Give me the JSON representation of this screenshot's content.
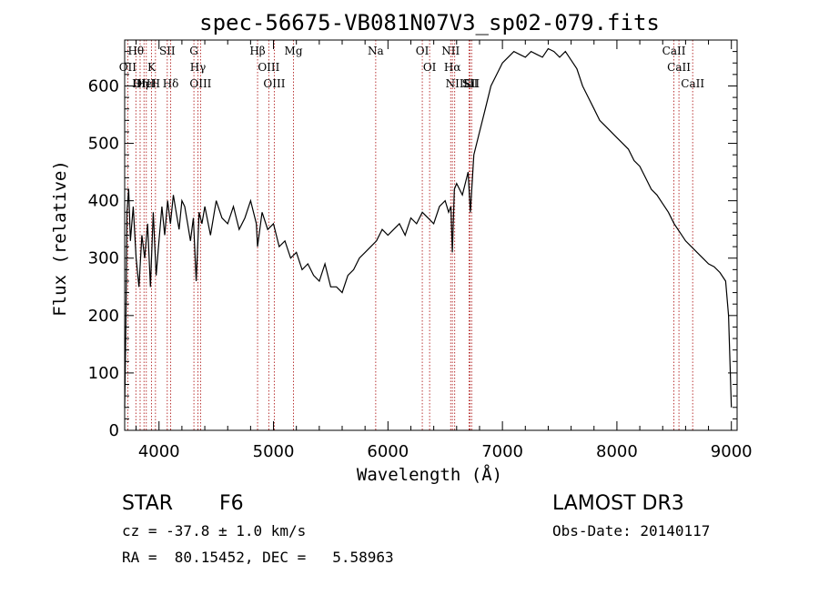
{
  "chart_data": {
    "type": "line",
    "title": "spec-56675-VB081N07V3_sp02-079.fits",
    "xlabel": "Wavelength (Å)",
    "ylabel": "Flux (relative)",
    "xlim": [
      3700,
      9050
    ],
    "ylim": [
      0,
      680
    ],
    "xticks": [
      4000,
      5000,
      6000,
      7000,
      8000,
      9000
    ],
    "yticks": [
      0,
      100,
      200,
      300,
      400,
      500,
      600
    ],
    "series": [
      {
        "name": "flux",
        "x": [
          3700,
          3710,
          3720,
          3735,
          3750,
          3775,
          3800,
          3825,
          3850,
          3875,
          3900,
          3925,
          3950,
          3975,
          4000,
          4025,
          4050,
          4075,
          4100,
          4125,
          4150,
          4175,
          4200,
          4225,
          4250,
          4275,
          4300,
          4325,
          4350,
          4375,
          4400,
          4450,
          4500,
          4550,
          4600,
          4650,
          4700,
          4750,
          4800,
          4850,
          4861,
          4900,
          4950,
          5000,
          5050,
          5100,
          5150,
          5200,
          5250,
          5300,
          5350,
          5400,
          5450,
          5500,
          5550,
          5600,
          5650,
          5700,
          5750,
          5800,
          5850,
          5900,
          5950,
          6000,
          6050,
          6100,
          6150,
          6200,
          6250,
          6300,
          6350,
          6400,
          6450,
          6500,
          6530,
          6550,
          6563,
          6580,
          6600,
          6650,
          6700,
          6720,
          6750,
          6800,
          6850,
          6900,
          6950,
          7000,
          7050,
          7100,
          7150,
          7200,
          7250,
          7300,
          7350,
          7400,
          7450,
          7500,
          7550,
          7600,
          7650,
          7700,
          7750,
          7800,
          7850,
          7900,
          7950,
          8000,
          8050,
          8100,
          8150,
          8200,
          8250,
          8300,
          8350,
          8400,
          8450,
          8500,
          8550,
          8600,
          8650,
          8700,
          8750,
          8800,
          8850,
          8900,
          8950,
          8975,
          9000
        ],
        "y": [
          40,
          180,
          380,
          420,
          330,
          390,
          300,
          250,
          340,
          300,
          360,
          250,
          380,
          270,
          330,
          390,
          340,
          400,
          360,
          410,
          380,
          350,
          400,
          390,
          360,
          330,
          370,
          260,
          380,
          360,
          390,
          340,
          400,
          370,
          360,
          390,
          350,
          370,
          400,
          360,
          320,
          380,
          350,
          360,
          320,
          330,
          300,
          310,
          280,
          290,
          270,
          260,
          290,
          250,
          250,
          240,
          270,
          280,
          300,
          310,
          320,
          330,
          350,
          340,
          350,
          360,
          340,
          370,
          360,
          380,
          370,
          360,
          390,
          400,
          380,
          390,
          310,
          420,
          430,
          410,
          450,
          380,
          480,
          520,
          560,
          600,
          620,
          640,
          650,
          660,
          655,
          650,
          660,
          655,
          650,
          665,
          660,
          650,
          660,
          645,
          630,
          600,
          580,
          560,
          540,
          530,
          520,
          510,
          500,
          490,
          470,
          460,
          440,
          420,
          410,
          395,
          380,
          360,
          345,
          330,
          320,
          310,
          300,
          290,
          285,
          275,
          260,
          200,
          40
        ]
      }
    ],
    "lines": [
      {
        "name": "Hθ",
        "wave": 3798
      },
      {
        "name": "OII",
        "wave": 3727
      },
      {
        "name": "OIII",
        "wave": 3869
      },
      {
        "name": "Hη",
        "wave": 3835
      },
      {
        "name": "HeI",
        "wave": 3889
      },
      {
        "name": "K",
        "wave": 3934
      },
      {
        "name": "H",
        "wave": 3969
      },
      {
        "name": "SII",
        "wave": 4072
      },
      {
        "name": "Hδ",
        "wave": 4102
      },
      {
        "name": "G",
        "wave": 4305
      },
      {
        "name": "Hγ",
        "wave": 4340
      },
      {
        "name": "OIII",
        "wave": 4363
      },
      {
        "name": "Hβ",
        "wave": 4861
      },
      {
        "name": "OIII",
        "wave": 4959
      },
      {
        "name": "OIII",
        "wave": 5007
      },
      {
        "name": "Mg",
        "wave": 5175
      },
      {
        "name": "Na",
        "wave": 5893
      },
      {
        "name": "OI",
        "wave": 6300
      },
      {
        "name": "OI",
        "wave": 6364
      },
      {
        "name": "NII",
        "wave": 6548
      },
      {
        "name": "Hα",
        "wave": 6563
      },
      {
        "name": "NII",
        "wave": 6583
      },
      {
        "name": "Li",
        "wave": 6708
      },
      {
        "name": "SII",
        "wave": 6717
      },
      {
        "name": "SII",
        "wave": 6731
      },
      {
        "name": "CaII",
        "wave": 8498
      },
      {
        "name": "CaII",
        "wave": 8542
      },
      {
        "name": "CaII",
        "wave": 8662
      }
    ]
  },
  "footer": {
    "class_label": "STAR",
    "subclass": "F6",
    "survey": "LAMOST DR3",
    "cz": "cz = -37.8 ± 1.0 km/s",
    "obs_date": "Obs-Date: 20140117",
    "radec": "RA =  80.15452, DEC =   5.58963"
  },
  "colors": {
    "axis": "#000000",
    "spectrum": "#000000",
    "lines": "#b22222"
  }
}
